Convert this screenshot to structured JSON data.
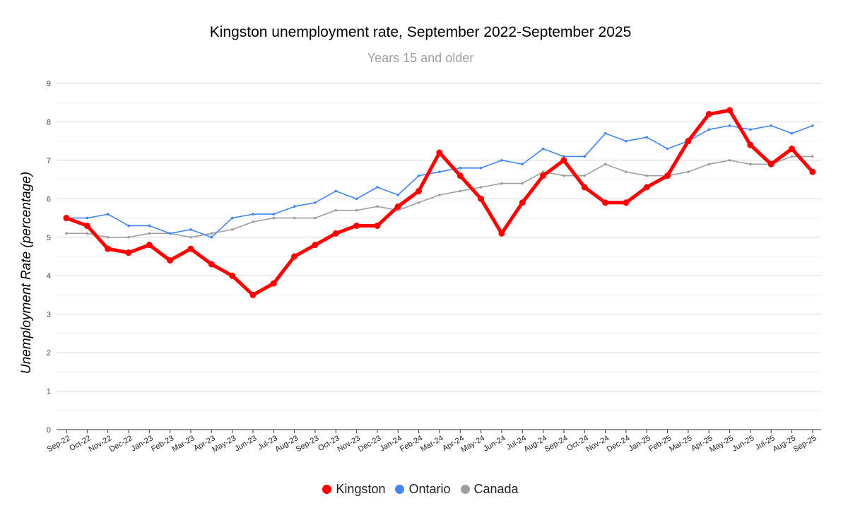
{
  "chart_data": {
    "type": "line",
    "title": "Kingston unemployment rate, September 2022-September 2025",
    "subtitle": "Years 15 and older",
    "xlabel": "",
    "ylabel": "Unemployment Rate (percentage)",
    "ylim": [
      0,
      9
    ],
    "yticks": [
      "0",
      "1",
      "2",
      "3",
      "4",
      "5",
      "6",
      "7",
      "8",
      "9"
    ],
    "grid": true,
    "legend_position": "bottom",
    "categories": [
      "Sep-22",
      "Oct-22",
      "Nov-22",
      "Dec-22",
      "Jan-23",
      "Feb-23",
      "Mar-23",
      "Apr-23",
      "May-23",
      "Jun-23",
      "Jul-23",
      "Aug-23",
      "Sep-23",
      "Oct-23",
      "Nov-23",
      "Dec-23",
      "Jan-24",
      "Feb-24",
      "Mar-24",
      "Apr-24",
      "May-24",
      "Jun-24",
      "Jul-24",
      "Aug-24",
      "Sep-24",
      "Oct-24",
      "Nov-24",
      "Dec-24",
      "Jan-25",
      "Feb-25",
      "Mar-25",
      "Apr-25",
      "May-25",
      "Jun-25",
      "Jul-25",
      "Aug-25",
      "Sep-25"
    ],
    "series": [
      {
        "name": "Kingston",
        "color": "#ff0000",
        "values": [
          5.5,
          5.3,
          4.7,
          4.6,
          4.8,
          4.4,
          4.7,
          4.3,
          4.0,
          3.5,
          3.8,
          4.5,
          4.8,
          5.1,
          5.3,
          5.3,
          5.8,
          6.2,
          7.2,
          6.6,
          6.0,
          5.1,
          5.9,
          6.6,
          7.0,
          6.3,
          5.9,
          5.9,
          6.3,
          6.6,
          7.5,
          8.2,
          8.3,
          7.4,
          6.9,
          7.3,
          6.7
        ]
      },
      {
        "name": "Ontario",
        "color": "#4285f4",
        "values": [
          5.5,
          5.5,
          5.6,
          5.3,
          5.3,
          5.1,
          5.2,
          5.0,
          5.5,
          5.6,
          5.6,
          5.8,
          5.9,
          6.2,
          6.0,
          6.3,
          6.1,
          6.6,
          6.7,
          6.8,
          6.8,
          7.0,
          6.9,
          7.3,
          7.1,
          7.1,
          7.7,
          7.5,
          7.6,
          7.3,
          7.5,
          7.8,
          7.9,
          7.8,
          7.9,
          7.7,
          7.9
        ]
      },
      {
        "name": "Canada",
        "color": "#9e9e9e",
        "values": [
          5.1,
          5.1,
          5.0,
          5.0,
          5.1,
          5.1,
          5.0,
          5.1,
          5.2,
          5.4,
          5.5,
          5.5,
          5.5,
          5.7,
          5.7,
          5.8,
          5.7,
          5.9,
          6.1,
          6.2,
          6.3,
          6.4,
          6.4,
          6.7,
          6.6,
          6.6,
          6.9,
          6.7,
          6.6,
          6.6,
          6.7,
          6.9,
          7.0,
          6.9,
          6.9,
          7.1,
          7.1
        ]
      }
    ]
  }
}
